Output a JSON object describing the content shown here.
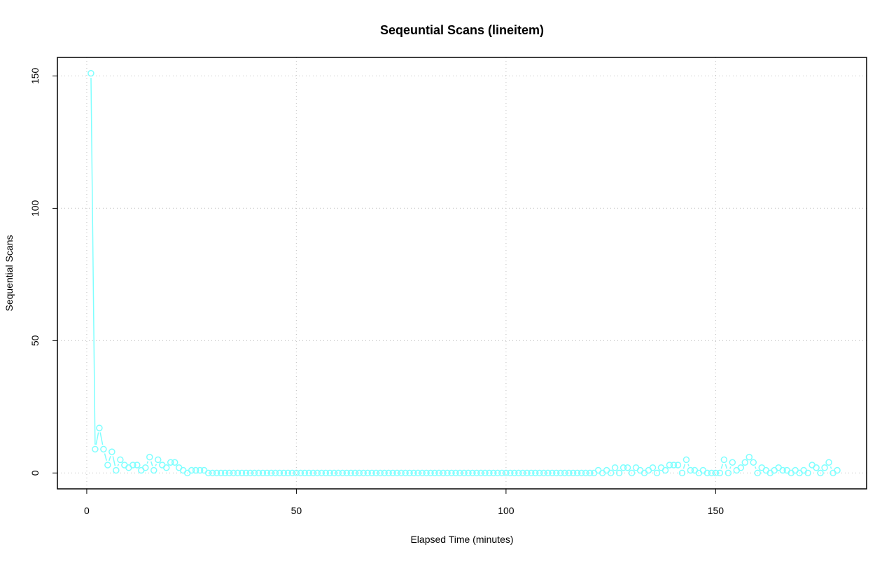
{
  "chart_data": {
    "type": "line",
    "title": "Seqeuntial Scans (lineitem)",
    "xlabel": "Elapsed Time (minutes)",
    "ylabel": "Sequential Scans",
    "xlim": [
      -7,
      186
    ],
    "ylim": [
      -6,
      157
    ],
    "xticks": [
      0,
      50,
      100,
      150
    ],
    "yticks": [
      0,
      50,
      100,
      150
    ],
    "grid": true,
    "line_color": "#7fffff",
    "series": [
      {
        "x": [
          1,
          2,
          3,
          4,
          5,
          6,
          7,
          8,
          9,
          10,
          11,
          12,
          13,
          14,
          15,
          16,
          17,
          18,
          19,
          20,
          21,
          22,
          23,
          24,
          25,
          26,
          27,
          28,
          29,
          30,
          31,
          32,
          33,
          34,
          35,
          36,
          37,
          38,
          39,
          40,
          41,
          42,
          43,
          44,
          45,
          46,
          47,
          48,
          49,
          50,
          51,
          52,
          53,
          54,
          55,
          56,
          57,
          58,
          59,
          60,
          61,
          62,
          63,
          64,
          65,
          66,
          67,
          68,
          69,
          70,
          71,
          72,
          73,
          74,
          75,
          76,
          77,
          78,
          79,
          80,
          81,
          82,
          83,
          84,
          85,
          86,
          87,
          88,
          89,
          90,
          91,
          92,
          93,
          94,
          95,
          96,
          97,
          98,
          99,
          100,
          101,
          102,
          103,
          104,
          105,
          106,
          107,
          108,
          109,
          110,
          111,
          112,
          113,
          114,
          115,
          116,
          117,
          118,
          119,
          120,
          121,
          122,
          123,
          124,
          125,
          126,
          127,
          128,
          129,
          130,
          131,
          132,
          133,
          134,
          135,
          136,
          137,
          138,
          139,
          140,
          141,
          142,
          143,
          144,
          145,
          146,
          147,
          148,
          149,
          150,
          151,
          152,
          153,
          154,
          155,
          156,
          157,
          158,
          159,
          160,
          161,
          162,
          163,
          164,
          165,
          166,
          167,
          168,
          169,
          170,
          171,
          172,
          173,
          174,
          175,
          176,
          177,
          178,
          179
        ],
        "y": [
          151,
          9,
          17,
          9,
          3,
          8,
          1,
          5,
          3,
          2,
          3,
          3,
          1,
          2,
          6,
          1,
          5,
          3,
          2,
          4,
          4,
          2,
          1,
          0,
          1,
          1,
          1,
          1,
          0,
          0,
          0,
          0,
          0,
          0,
          0,
          0,
          0,
          0,
          0,
          0,
          0,
          0,
          0,
          0,
          0,
          0,
          0,
          0,
          0,
          0,
          0,
          0,
          0,
          0,
          0,
          0,
          0,
          0,
          0,
          0,
          0,
          0,
          0,
          0,
          0,
          0,
          0,
          0,
          0,
          0,
          0,
          0,
          0,
          0,
          0,
          0,
          0,
          0,
          0,
          0,
          0,
          0,
          0,
          0,
          0,
          0,
          0,
          0,
          0,
          0,
          0,
          0,
          0,
          0,
          0,
          0,
          0,
          0,
          0,
          0,
          0,
          0,
          0,
          0,
          0,
          0,
          0,
          0,
          0,
          0,
          0,
          0,
          0,
          0,
          0,
          0,
          0,
          0,
          0,
          0,
          0,
          1,
          0,
          1,
          0,
          2,
          0,
          2,
          2,
          0,
          2,
          1,
          0,
          1,
          2,
          0,
          2,
          1,
          3,
          3,
          3,
          0,
          5,
          1,
          1,
          0,
          1,
          0,
          0,
          0,
          0,
          5,
          0,
          4,
          1,
          2,
          4,
          6,
          4,
          0,
          2,
          1,
          0,
          1,
          2,
          1,
          1,
          0,
          1,
          0,
          1,
          0,
          3,
          2,
          0,
          2,
          4,
          0,
          1
        ]
      }
    ]
  }
}
